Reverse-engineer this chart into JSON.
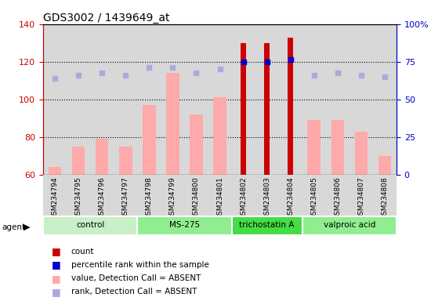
{
  "title": "GDS3002 / 1439649_at",
  "samples": [
    "GSM234794",
    "GSM234795",
    "GSM234796",
    "GSM234797",
    "GSM234798",
    "GSM234799",
    "GSM234800",
    "GSM234801",
    "GSM234802",
    "GSM234803",
    "GSM234804",
    "GSM234805",
    "GSM234806",
    "GSM234807",
    "GSM234808"
  ],
  "agents": [
    {
      "label": "control",
      "start": 0,
      "end": 4,
      "color": "#c8f0c8"
    },
    {
      "label": "MS-275",
      "start": 4,
      "end": 8,
      "color": "#90ee90"
    },
    {
      "label": "trichostatin A",
      "start": 8,
      "end": 11,
      "color": "#44dd44"
    },
    {
      "label": "valproic acid",
      "start": 11,
      "end": 15,
      "color": "#90ee90"
    }
  ],
  "value_absent": [
    64,
    75,
    79,
    75,
    97,
    114,
    92,
    101,
    null,
    null,
    null,
    89,
    89,
    83,
    70
  ],
  "rank_absent": [
    111,
    113,
    114,
    113,
    117,
    117,
    114,
    116,
    null,
    null,
    null,
    113,
    114,
    113,
    112
  ],
  "count_present": [
    null,
    null,
    null,
    null,
    null,
    null,
    null,
    null,
    130,
    130,
    133,
    null,
    null,
    null,
    null
  ],
  "rank_present": [
    null,
    null,
    null,
    null,
    null,
    null,
    null,
    null,
    120,
    120,
    121,
    null,
    null,
    null,
    null
  ],
  "ylim_left": [
    60,
    140
  ],
  "ylim_right": [
    0,
    100
  ],
  "yticks_left": [
    60,
    80,
    100,
    120,
    140
  ],
  "yticks_right": [
    0,
    25,
    50,
    75,
    100
  ],
  "color_count": "#cc0000",
  "color_rank_present": "#0000cc",
  "color_value_absent": "#ffaaaa",
  "color_rank_absent": "#aaaadd",
  "left_label_color": "#cc0000",
  "right_label_color": "#0000cc",
  "bg_color": "#d8d8d8"
}
